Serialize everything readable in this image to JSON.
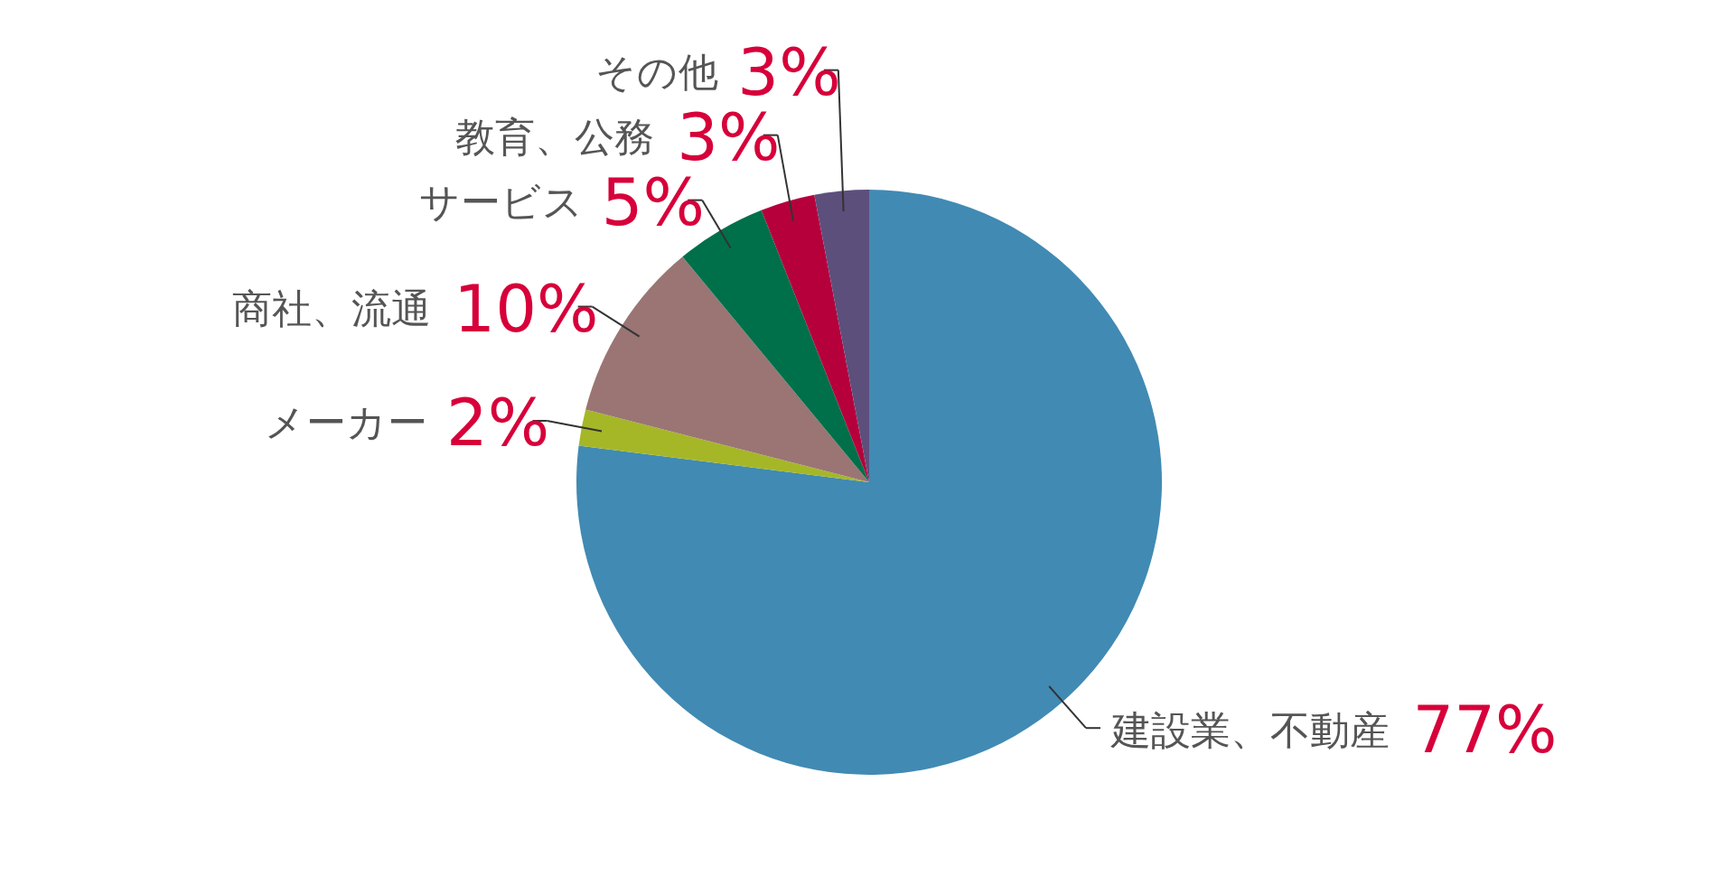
{
  "chart_data": {
    "type": "pie",
    "categories": [
      "建設業、不動産",
      "メーカー",
      "商社、流通",
      "サービス",
      "教育、公務",
      "その他"
    ],
    "values": [
      77,
      2,
      10,
      5,
      3,
      3
    ],
    "colors": [
      "#418ab3",
      "#a5b727",
      "#9a7574",
      "#00704a",
      "#b5003c",
      "#5c4f7c"
    ],
    "value_labels": [
      "77%",
      "2%",
      "10%",
      "5%",
      "3%",
      "3%"
    ]
  }
}
